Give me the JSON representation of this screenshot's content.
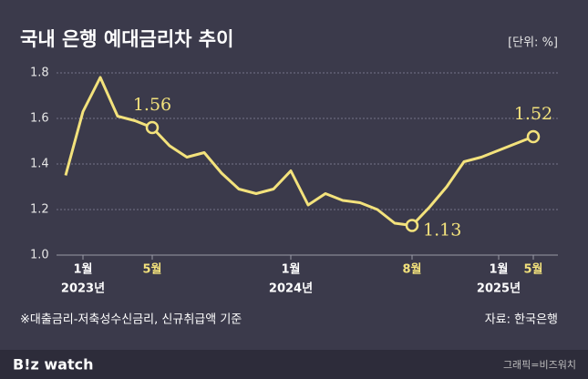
{
  "chart_data": {
    "type": "line",
    "title": "국내 은행 예대금리차 추이",
    "unit": "[단위: %]",
    "categories": [
      null,
      "1월",
      null,
      null,
      null,
      "5월",
      null,
      null,
      null,
      null,
      null,
      null,
      null,
      "1월",
      null,
      null,
      null,
      null,
      null,
      null,
      "8월",
      null,
      null,
      null,
      null,
      "1월",
      null,
      "5월"
    ],
    "years": [
      null,
      "2023년",
      null,
      null,
      null,
      null,
      null,
      null,
      null,
      null,
      null,
      null,
      null,
      "2024년",
      null,
      null,
      null,
      null,
      null,
      null,
      null,
      null,
      null,
      null,
      null,
      "2025년",
      null,
      null
    ],
    "series": [
      {
        "name": "예대금리차",
        "color": "#f3e27c",
        "values": [
          1.35,
          1.63,
          1.78,
          1.61,
          1.59,
          1.56,
          1.48,
          1.43,
          1.45,
          1.36,
          1.29,
          1.27,
          1.29,
          1.37,
          1.22,
          1.27,
          1.24,
          1.23,
          1.2,
          1.14,
          1.13,
          1.21,
          1.3,
          1.41,
          1.43,
          1.46,
          1.49,
          1.52
        ],
        "value_labels": [
          null,
          null,
          null,
          null,
          null,
          "1.56",
          null,
          null,
          null,
          null,
          null,
          null,
          null,
          null,
          null,
          null,
          null,
          null,
          null,
          null,
          "1.13",
          null,
          null,
          null,
          null,
          null,
          null,
          "1.52"
        ]
      }
    ],
    "ylim": [
      1.0,
      1.8
    ],
    "yticks": [
      {
        "value": 1.0,
        "label": "1.0"
      },
      1.2,
      1.4,
      1.6,
      1.8
    ],
    "grid": true,
    "note": "※대출금리-저축성수신금리, 신규취급액 기준",
    "source": "자료: 한국은행",
    "brand": "B!z watch",
    "credit": "그래픽=비즈워치"
  }
}
